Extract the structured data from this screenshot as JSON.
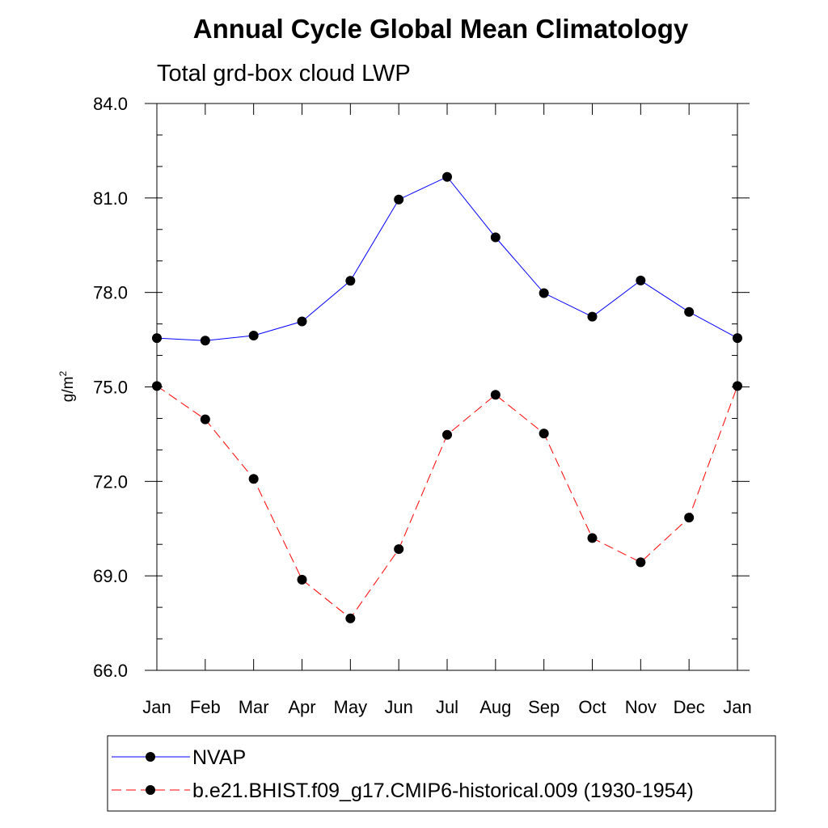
{
  "chart_data": {
    "type": "line",
    "title": "Annual Cycle Global Mean Climatology",
    "subtitle": "Total grd-box cloud LWP",
    "ylabel_base": "g/m",
    "ylabel_sup": "2",
    "xlabel": "",
    "categories": [
      "Jan",
      "Feb",
      "Mar",
      "Apr",
      "May",
      "Jun",
      "Jul",
      "Aug",
      "Sep",
      "Oct",
      "Nov",
      "Dec",
      "Jan"
    ],
    "ylim": [
      66.0,
      84.0
    ],
    "yticks": [
      "66.0",
      "69.0",
      "72.0",
      "75.0",
      "78.0",
      "81.0",
      "84.0"
    ],
    "grid": false,
    "legend_position": "bottom",
    "series": [
      {
        "name": "NVAP",
        "color": "#0000ff",
        "line_style": "solid",
        "values": [
          76.55,
          76.47,
          76.63,
          77.08,
          78.37,
          80.95,
          81.67,
          79.75,
          77.98,
          77.23,
          78.38,
          77.38,
          76.55
        ]
      },
      {
        "name": "b.e21.BHIST.f09_g17.CMIP6-historical.009 (1930-1954)",
        "color": "#ff0000",
        "line_style": "dashed",
        "values": [
          75.03,
          73.97,
          72.08,
          68.88,
          67.65,
          69.85,
          73.48,
          74.75,
          73.52,
          70.2,
          69.43,
          70.85,
          75.03
        ]
      }
    ]
  }
}
